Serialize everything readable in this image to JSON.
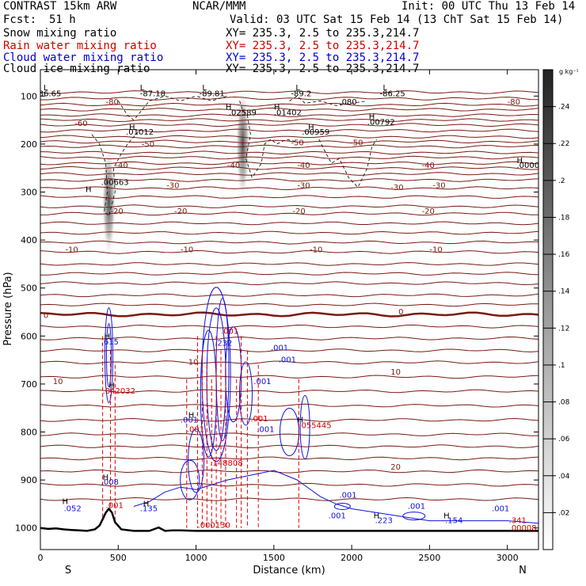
{
  "header": {
    "model": "CONTRAST 15km ARW",
    "center": "NCAR/MMM",
    "init": "Init: 00 UTC Thu 13 Feb 14",
    "fcst_label": "Fcst:",
    "fcst_value": "51 h",
    "valid": "Valid: 03 UTC Sat 15 Feb 14 (13 ChT Sat 15 Feb 14)"
  },
  "fields": [
    {
      "label": "Snow mixing ratio",
      "xy": "XY= 235.3,  2.5 to 235.3,214.7",
      "color": "#000000"
    },
    {
      "label": "Rain water mixing ratio",
      "xy": "XY= 235.3,  2.5 to 235.3,214.7",
      "color": "#d00000"
    },
    {
      "label": "Cloud water mixing ratio",
      "xy": "XY= 235.3,  2.5 to 235.3,214.7",
      "color": "#0000cc"
    },
    {
      "label": "Cloud ice mixing ratio",
      "xy": "XY= 235.3,  2.5 to 235.3,214.7",
      "color": "#000000"
    }
  ],
  "chart_data": {
    "type": "contour",
    "xlabel": "Distance (km)",
    "ylabel": "Pressure (hPa)",
    "x_ticks": [
      0,
      500,
      1000,
      1500,
      2000,
      2500,
      3000
    ],
    "x_ends": [
      "S",
      "N"
    ],
    "xlim": [
      0,
      3200
    ],
    "y_ticks": [
      100,
      200,
      300,
      400,
      500,
      600,
      700,
      800,
      900,
      1000
    ],
    "ylim": [
      1045,
      45
    ],
    "colorbar": {
      "unit": "g kg⁻¹",
      "ticks": [
        ".02",
        ".04",
        ".06",
        ".08",
        ".1",
        ".12",
        ".14",
        ".16",
        ".18",
        ".2",
        ".22",
        ".24"
      ],
      "values": [
        0.02,
        0.04,
        0.06,
        0.08,
        0.1,
        0.12,
        0.14,
        0.16,
        0.18,
        0.2,
        0.22,
        0.24
      ],
      "range": [
        0,
        0.26
      ]
    },
    "temperature_contours": [
      {
        "label": "-80",
        "p": 118
      },
      {
        "label": "-70",
        "p": 128
      },
      {
        "label": "-60",
        "p": 160
      },
      {
        "label": "-50",
        "p": 205
      },
      {
        "label": "-40",
        "p": 250
      },
      {
        "label": "-30",
        "p": 292
      },
      {
        "label": "-20",
        "p": 345
      },
      {
        "label": "-10",
        "p": 425
      },
      {
        "label": "0",
        "p": 555
      },
      {
        "label": "10",
        "p": 685
      },
      {
        "label": "20",
        "p": 882
      }
    ],
    "temperature_labels": [
      {
        "text": "-80",
        "x": 420,
        "p": 118
      },
      {
        "text": "-80",
        "x": 3000,
        "p": 118
      },
      {
        "text": "-60",
        "x": 220,
        "p": 162
      },
      {
        "text": "-50",
        "x": 650,
        "p": 206
      },
      {
        "text": "-50",
        "x": 1610,
        "p": 203
      },
      {
        "text": "-50",
        "x": 1990,
        "p": 203
      },
      {
        "text": "-40",
        "x": 480,
        "p": 250
      },
      {
        "text": "-40",
        "x": 1200,
        "p": 250
      },
      {
        "text": "-40",
        "x": 1650,
        "p": 250
      },
      {
        "text": "-40",
        "x": 2450,
        "p": 250
      },
      {
        "text": "-30",
        "x": 810,
        "p": 292
      },
      {
        "text": "-30",
        "x": 1650,
        "p": 292
      },
      {
        "text": "-30",
        "x": 2250,
        "p": 296
      },
      {
        "text": "-30",
        "x": 2520,
        "p": 292
      },
      {
        "text": "-20",
        "x": 450,
        "p": 345
      },
      {
        "text": "-20",
        "x": 860,
        "p": 345
      },
      {
        "text": "-20",
        "x": 1620,
        "p": 345
      },
      {
        "text": "-20",
        "x": 2450,
        "p": 345
      },
      {
        "text": "-10",
        "x": 160,
        "p": 425
      },
      {
        "text": "-10",
        "x": 900,
        "p": 425
      },
      {
        "text": "-10",
        "x": 1730,
        "p": 425
      },
      {
        "text": "-10",
        "x": 2500,
        "p": 425
      },
      {
        "text": "0",
        "x": 20,
        "p": 562
      },
      {
        "text": "0",
        "x": 2300,
        "p": 555
      },
      {
        "text": "10",
        "x": 950,
        "p": 660
      },
      {
        "text": "10",
        "x": 80,
        "p": 700
      },
      {
        "text": "10",
        "x": 2250,
        "p": 680
      },
      {
        "text": "20",
        "x": 2250,
        "p": 878
      }
    ],
    "cloud_ice_labels": [
      {
        "text": "-86.65",
        "x": -30,
        "p": 100
      },
      {
        "text": "-87.18",
        "x": 640,
        "p": 100
      },
      {
        "text": "-89.81",
        "x": 1020,
        "p": 100
      },
      {
        "text": "-89.2",
        "x": 1610,
        "p": 100
      },
      {
        "text": "-86.25",
        "x": 2180,
        "p": 100
      },
      {
        "text": ".02589",
        "x": 1210,
        "p": 140
      },
      {
        "text": ".01402",
        "x": 1500,
        "p": 140
      },
      {
        "text": ".01012",
        "x": 550,
        "p": 180
      },
      {
        "text": ".00959",
        "x": 1680,
        "p": 180
      },
      {
        "text": ".00792",
        "x": 2100,
        "p": 160
      },
      {
        "text": ".00663",
        "x": 390,
        "p": 285
      },
      {
        "text": ".0000",
        "x": 3060,
        "p": 250
      },
      {
        "text": ".080",
        "x": 1920,
        "p": 118
      }
    ],
    "cloud_ice_peaks": [
      {
        "x": 1300,
        "p": 200
      },
      {
        "x": 440,
        "p": 320
      }
    ],
    "cloud_water_labels": [
      {
        "text": ".615",
        "x": 390,
        "p": 618
      },
      {
        "text": ".232",
        "x": 1120,
        "p": 620
      },
      {
        "text": ".001",
        "x": 1530,
        "p": 655
      },
      {
        "text": ".001",
        "x": 1370,
        "p": 700
      },
      {
        "text": ".001",
        "x": 900,
        "p": 780
      },
      {
        "text": ".001",
        "x": 1390,
        "p": 800
      },
      {
        "text": ".001",
        "x": 1480,
        "p": 630
      },
      {
        "text": ".008",
        "x": 390,
        "p": 910
      },
      {
        "text": ".052",
        "x": 150,
        "p": 965
      },
      {
        "text": ".135",
        "x": 640,
        "p": 965
      },
      {
        "text": ".001",
        "x": 1920,
        "p": 937
      },
      {
        "text": ".001",
        "x": 1850,
        "p": 980
      },
      {
        "text": ".223",
        "x": 2150,
        "p": 990
      },
      {
        "text": ".001",
        "x": 2360,
        "p": 960
      },
      {
        "text": ".154",
        "x": 2600,
        "p": 990
      },
      {
        "text": ".001",
        "x": 2900,
        "p": 965
      }
    ],
    "rain_water_labels": [
      {
        "text": ".042032",
        "x": 400,
        "p": 720
      },
      {
        "text": ".001",
        "x": 420,
        "p": 958
      },
      {
        "text": ".001",
        "x": 940,
        "p": 800
      },
      {
        "text": ".001",
        "x": 1160,
        "p": 595
      },
      {
        "text": ".001",
        "x": 1350,
        "p": 778
      },
      {
        "text": ".148808",
        "x": 1090,
        "p": 870
      },
      {
        "text": ".000130",
        "x": 1010,
        "p": 1000
      },
      {
        "text": ".055445",
        "x": 1660,
        "p": 792
      },
      {
        "text": ".341",
        "x": 3010,
        "p": 990
      },
      {
        "text": ".00008",
        "x": 3010,
        "p": 1005
      }
    ],
    "maxima_markers": [
      {
        "text": "H",
        "x": 290,
        "p": 300
      },
      {
        "text": "H",
        "x": 570,
        "p": 170
      },
      {
        "text": "H",
        "x": 1190,
        "p": 128
      },
      {
        "text": "H",
        "x": 1500,
        "p": 128
      },
      {
        "text": "H",
        "x": 1720,
        "p": 170
      },
      {
        "text": "H",
        "x": 2110,
        "p": 148
      },
      {
        "text": "H",
        "x": 3060,
        "p": 240
      },
      {
        "text": "L",
        "x": 20,
        "p": 88
      },
      {
        "text": "L",
        "x": 640,
        "p": 88
      },
      {
        "text": "L",
        "x": 1040,
        "p": 88
      },
      {
        "text": "L",
        "x": 1640,
        "p": 88
      },
      {
        "text": "L",
        "x": 2200,
        "p": 88
      },
      {
        "text": "H",
        "x": 410,
        "p": 606
      },
      {
        "text": "H",
        "x": 400,
        "p": 900
      },
      {
        "text": "H",
        "x": 140,
        "p": 950
      },
      {
        "text": "H",
        "x": 660,
        "p": 955
      },
      {
        "text": "H",
        "x": 2140,
        "p": 980
      },
      {
        "text": "H",
        "x": 2590,
        "p": 980
      },
      {
        "text": "H",
        "x": 440,
        "p": 708
      },
      {
        "text": "H",
        "x": 950,
        "p": 770
      },
      {
        "text": "H",
        "x": 1650,
        "p": 780
      }
    ],
    "terrain": {
      "x": [
        0,
        50,
        100,
        150,
        200,
        250,
        300,
        350,
        380,
        400,
        420,
        440,
        460,
        480,
        520,
        600,
        700,
        760,
        800,
        850,
        900,
        1000,
        1200,
        1400,
        1600,
        1800,
        2000,
        2200,
        2400,
        2600,
        2800,
        3000,
        3200
      ],
      "p": [
        1000,
        1002,
        1001,
        1003,
        1004,
        1005,
        1006,
        1003,
        995,
        982,
        968,
        960,
        968,
        988,
        1003,
        1006,
        1006,
        999,
        1006,
        1005,
        1005,
        1006,
        1006,
        1006,
        1006,
        1006,
        1006,
        1006,
        1006,
        1006,
        1006,
        1006,
        1006
      ]
    }
  }
}
